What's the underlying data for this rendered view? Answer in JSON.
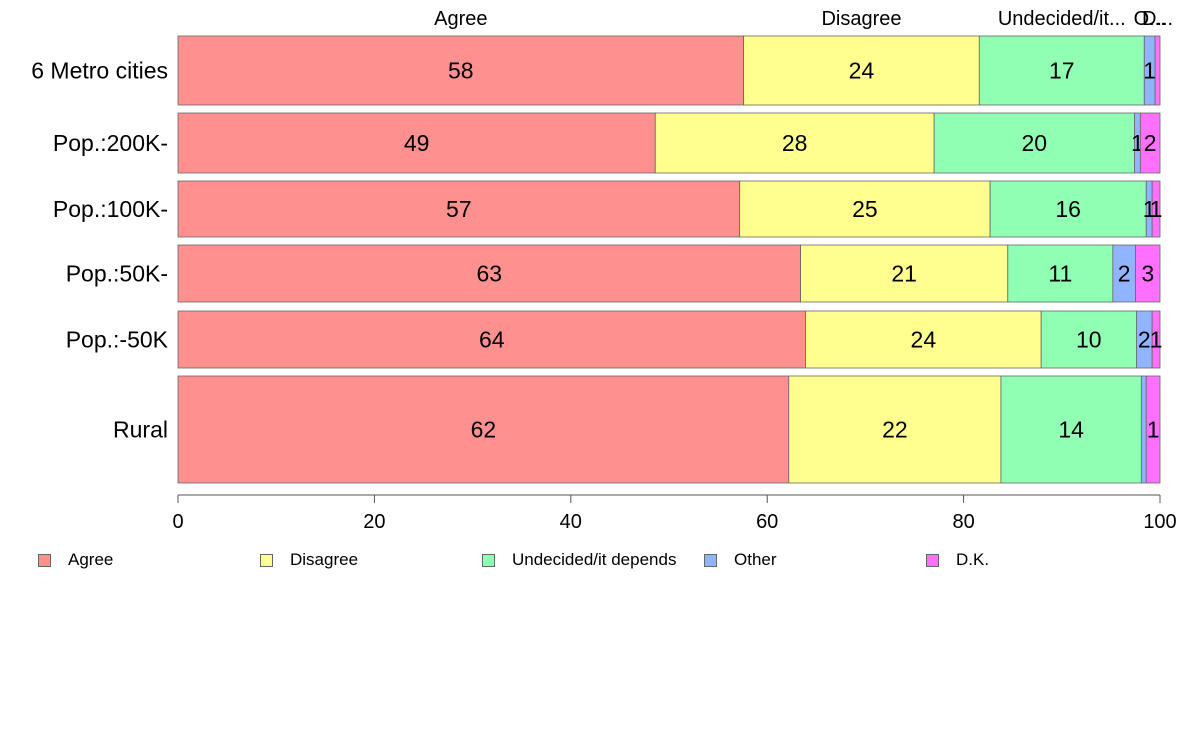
{
  "chart_data": {
    "type": "bar",
    "orientation": "horizontal",
    "stacked": true,
    "categories": [
      "6 Metro cities",
      "Pop.:200K-",
      "Pop.:100K-",
      "Pop.:50K-",
      "Pop.:-50K",
      "Rural"
    ],
    "series": [
      {
        "name": "Agree",
        "color": "#ff9090",
        "values": [
          57.6,
          48.6,
          57.2,
          63.4,
          63.9,
          62.2
        ]
      },
      {
        "name": "Disagree",
        "color": "#ffff90",
        "values": [
          24.0,
          28.4,
          25.5,
          21.1,
          24.0,
          21.6
        ]
      },
      {
        "name": "Undecided/it depends",
        "color": "#90ffb4",
        "values": [
          16.8,
          20.4,
          15.9,
          10.7,
          9.7,
          14.3
        ]
      },
      {
        "name": "Other",
        "color": "#90b4ff",
        "values": [
          1.1,
          0.6,
          0.6,
          2.3,
          1.6,
          0.5
        ]
      },
      {
        "name": "D.K.",
        "color": "#ff70ff",
        "values": [
          0.5,
          2.0,
          0.8,
          2.5,
          0.8,
          1.4
        ]
      }
    ],
    "data_labels": [
      [
        "58",
        "24",
        "17",
        "1",
        ""
      ],
      [
        "49",
        "28",
        "20",
        "1",
        "2"
      ],
      [
        "57",
        "25",
        "16",
        "1",
        "1"
      ],
      [
        "63",
        "21",
        "11",
        "2",
        "3"
      ],
      [
        "64",
        "24",
        "10",
        "2",
        "1"
      ],
      [
        "62",
        "22",
        "14",
        "",
        "1"
      ]
    ],
    "top_labels": [
      "Agree",
      "Disagree",
      "Undecided/it...",
      "O...",
      "D..."
    ],
    "xlim": [
      0,
      100
    ],
    "xticks": [
      0,
      20,
      40,
      60,
      80,
      100
    ],
    "legend_position": "bottom",
    "grid": false,
    "title": "",
    "xlabel": "",
    "ylabel": ""
  },
  "legend": {
    "items": [
      {
        "label": "Agree",
        "color": "#ff9090"
      },
      {
        "label": "Disagree",
        "color": "#ffff90"
      },
      {
        "label": "Undecided/it depends",
        "color": "#90ffb4"
      },
      {
        "label": "Other",
        "color": "#90b4ff"
      },
      {
        "label": "D.K.",
        "color": "#ff70ff"
      }
    ]
  }
}
